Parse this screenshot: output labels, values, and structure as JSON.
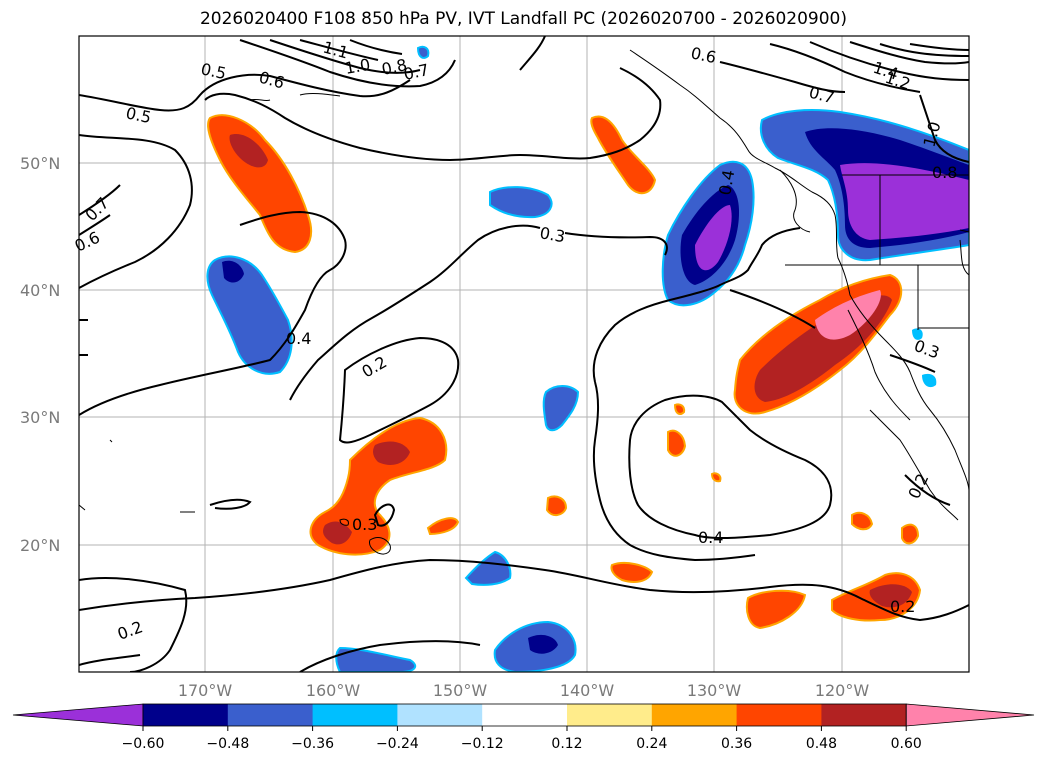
{
  "title": "2026020400 F108 850 hPa PV, IVT Landfall PC (2026020700 - 2026020900)",
  "map": {
    "lat_labels": [
      "50°N",
      "40°N",
      "30°N",
      "20°N"
    ],
    "lon_labels": [
      "170°W",
      "160°W",
      "150°W",
      "140°W",
      "130°W",
      "120°W"
    ]
  },
  "pv_contour_labels": [
    "0.5",
    "0.6",
    "1.1",
    "1.0",
    "0.8",
    "0.7",
    "0.5",
    "0.7",
    "0.6",
    "0.6",
    "0.7",
    "1.4",
    "1.2",
    "1.0",
    "0.8",
    "0.4",
    "0.3",
    "0.2",
    "0.3",
    "0.4",
    "0.3",
    "0.2",
    "0.2",
    "0.2",
    "0.4"
  ],
  "colorbar": {
    "ticks": [
      "−0.60",
      "−0.48",
      "−0.36",
      "−0.24",
      "−0.12",
      "0.12",
      "0.24",
      "0.36",
      "0.48",
      "0.60"
    ],
    "colors": [
      "#9b30d9",
      "#00008b",
      "#3a5fcd",
      "#00bfff",
      "#b0e2ff",
      "#ffffff",
      "#ffec8b",
      "#ffa500",
      "#ff4500",
      "#b22222",
      "#ff82ab"
    ]
  }
}
